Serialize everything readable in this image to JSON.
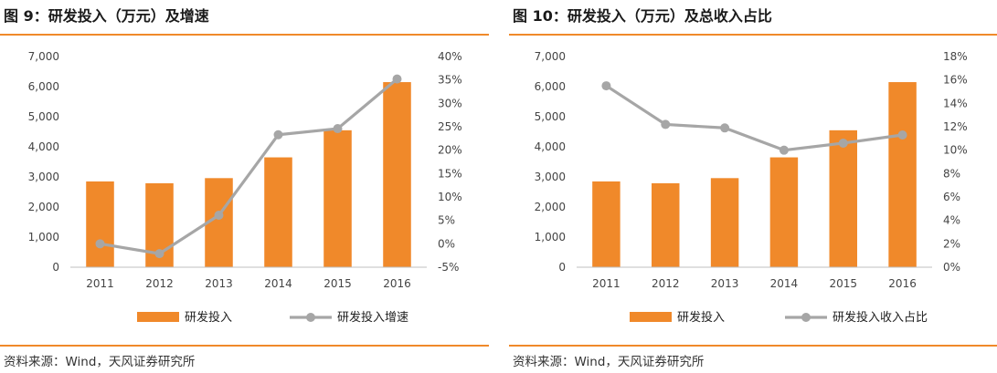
{
  "left": {
    "title": "图 9：研发投入（万元）及增速",
    "source": "资料来源：Wind，天风证券研究所",
    "chart_data": {
      "type": "bar+line",
      "categories": [
        "2011",
        "2012",
        "2013",
        "2014",
        "2015",
        "2016"
      ],
      "series": [
        {
          "name": "研发投入",
          "type": "bar",
          "axis": "left",
          "values": [
            2850,
            2790,
            2960,
            3650,
            4550,
            6150
          ],
          "color": "#f0892a"
        },
        {
          "name": "研发投入增速",
          "type": "line",
          "axis": "right",
          "values": [
            0.0,
            -2.1,
            6.1,
            23.3,
            24.6,
            35.2
          ],
          "color": "#a6a6a6"
        }
      ],
      "left_axis": {
        "min": 0,
        "max": 7000,
        "ticks": [
          "0",
          "1,000",
          "2,000",
          "3,000",
          "4,000",
          "5,000",
          "6,000",
          "7,000"
        ]
      },
      "right_axis": {
        "min": -5,
        "max": 40,
        "ticks": [
          "-5%",
          "0%",
          "5%",
          "10%",
          "15%",
          "20%",
          "25%",
          "30%",
          "35%",
          "40%"
        ]
      },
      "grid": false,
      "legend": "bottom"
    }
  },
  "right": {
    "title": "图 10：研发投入（万元）及总收入占比",
    "source": "资料来源：Wind，天风证券研究所",
    "chart_data": {
      "type": "bar+line",
      "categories": [
        "2011",
        "2012",
        "2013",
        "2014",
        "2015",
        "2016"
      ],
      "series": [
        {
          "name": "研发投入",
          "type": "bar",
          "axis": "left",
          "values": [
            2850,
            2790,
            2960,
            3650,
            4550,
            6150
          ],
          "color": "#f0892a"
        },
        {
          "name": "研发投入收入占比",
          "type": "line",
          "axis": "right",
          "values": [
            15.5,
            12.2,
            11.9,
            10.0,
            10.6,
            11.3
          ],
          "color": "#a6a6a6"
        }
      ],
      "left_axis": {
        "min": 0,
        "max": 7000,
        "ticks": [
          "0",
          "1,000",
          "2,000",
          "3,000",
          "4,000",
          "5,000",
          "6,000",
          "7,000"
        ]
      },
      "right_axis": {
        "min": 0,
        "max": 18,
        "ticks": [
          "0%",
          "2%",
          "4%",
          "6%",
          "8%",
          "10%",
          "12%",
          "14%",
          "16%",
          "18%"
        ]
      },
      "grid": false,
      "legend": "bottom"
    }
  }
}
